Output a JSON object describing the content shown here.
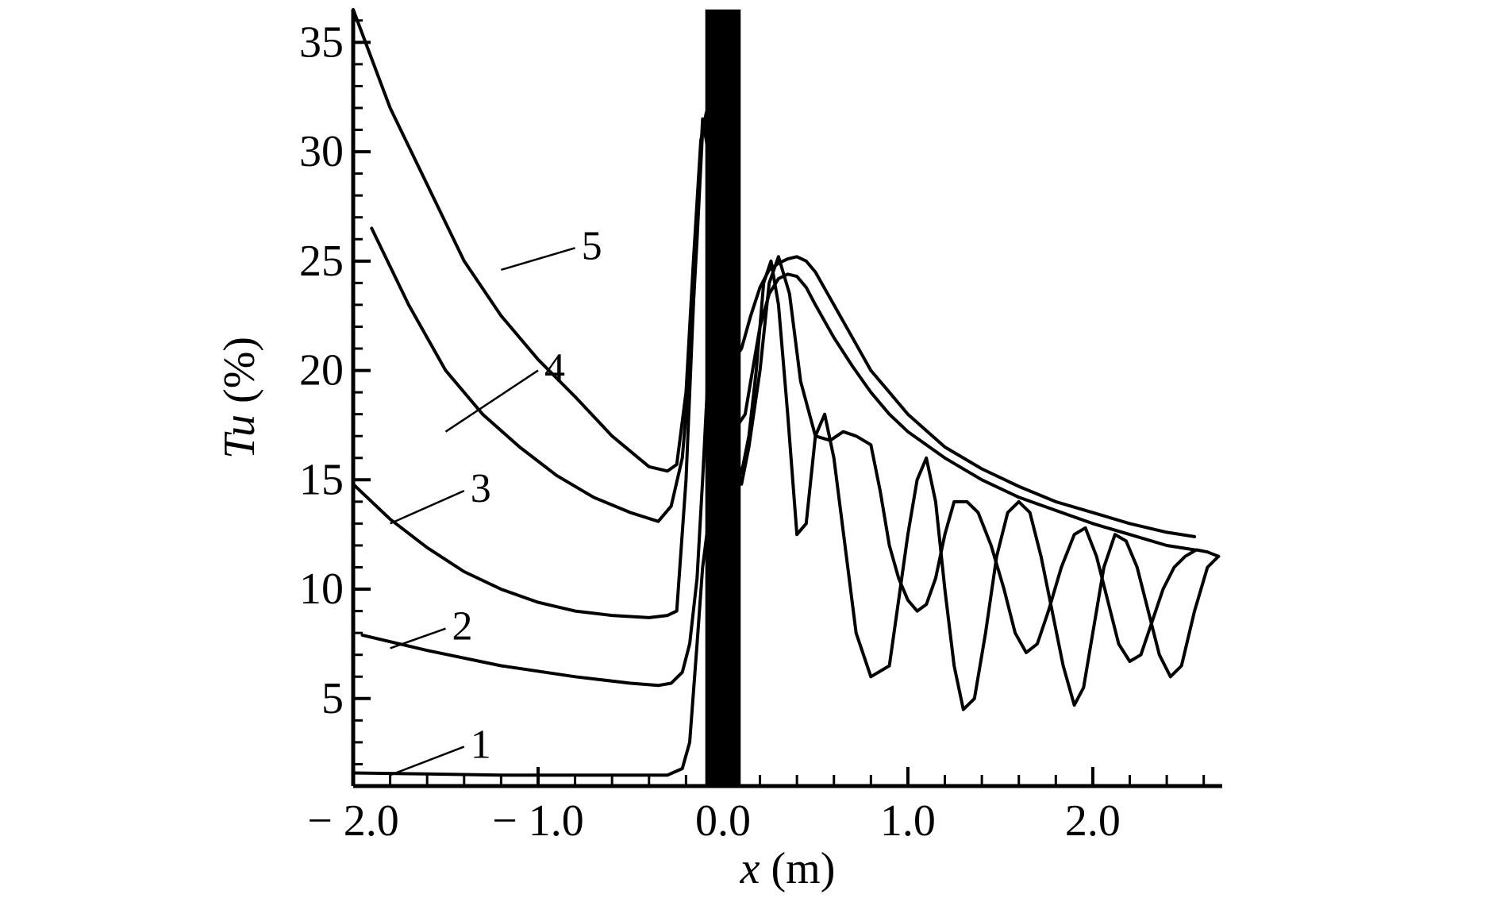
{
  "chart_data": {
    "type": "line",
    "xlabel": {
      "var": "x",
      "unit": " (m)"
    },
    "ylabel": {
      "var": "Tu",
      "unit": " (%)"
    },
    "xlim": [
      -2.0,
      2.7
    ],
    "ylim": [
      1.0,
      36.5
    ],
    "x_major_ticks": [
      -2.0,
      -1.0,
      0.0,
      1.0,
      2.0
    ],
    "x_tick_labels": [
      "− 2.0",
      "− 1.0",
      "0.0",
      "1.0",
      "2.0"
    ],
    "y_major_ticks": [
      5,
      10,
      15,
      20,
      25,
      30,
      35
    ],
    "y_tick_labels": [
      "5",
      "10",
      "15",
      "20",
      "25",
      "30",
      "35"
    ],
    "grid": false,
    "colors": {
      "line": "#000000",
      "background": "#ffffff",
      "band": "#000000"
    },
    "black_band": {
      "x": [
        -0.1,
        0.1
      ],
      "y": [
        1.0,
        36.5
      ]
    },
    "series": [
      {
        "label": "1",
        "label_pos": {
          "x": -1.34,
          "y": 2.9
        },
        "leader": [
          [
            -1.4,
            2.8
          ],
          [
            -1.8,
            1.5
          ]
        ],
        "x": [
          -2.0,
          -1.6,
          -1.2,
          -0.8,
          -0.5,
          -0.3,
          -0.22,
          -0.18,
          -0.14,
          -0.11,
          -0.08,
          -0.04,
          0.0
        ],
        "y": [
          1.6,
          1.55,
          1.5,
          1.5,
          1.5,
          1.5,
          1.8,
          3.0,
          7.5,
          11.0,
          13.0,
          13.5,
          13.5
        ]
      },
      {
        "label": "2",
        "label_pos": {
          "x": 0.65,
          "y": 7.2
        },
        "leader": [
          [
            -1.5,
            8.2
          ],
          [
            -1.8,
            7.3
          ]
        ],
        "x": [
          -1.95,
          -1.6,
          -1.2,
          -0.8,
          -0.5,
          -0.35,
          -0.28,
          -0.22,
          -0.18,
          -0.14,
          -0.11,
          -0.08,
          -0.04,
          0.0,
          0.05,
          0.1,
          0.14,
          0.2,
          0.25,
          0.3,
          0.36,
          0.42,
          0.5,
          0.58,
          0.65,
          0.72,
          0.8,
          0.85,
          0.9,
          0.95,
          1.0,
          1.05,
          1.1,
          1.15,
          1.2,
          1.25,
          1.32,
          1.38,
          1.45,
          1.52,
          1.58,
          1.64,
          1.7,
          1.76,
          1.83,
          1.9,
          1.96,
          2.02,
          2.08,
          2.14,
          2.2,
          2.26,
          2.32,
          2.38,
          2.44,
          2.5,
          2.56,
          2.62,
          2.68
        ],
        "y": [
          7.9,
          7.2,
          6.5,
          6.0,
          5.7,
          5.6,
          5.7,
          6.2,
          7.5,
          10.5,
          15.0,
          20.0,
          22.0,
          20.0,
          17.0,
          14.8,
          16.5,
          20.0,
          24.0,
          25.2,
          23.5,
          19.5,
          17.0,
          16.8,
          17.2,
          17.0,
          16.6,
          14.5,
          12.0,
          10.5,
          9.5,
          9.0,
          9.3,
          10.5,
          12.5,
          14.0,
          14.0,
          13.5,
          12.0,
          10.0,
          8.0,
          7.1,
          7.5,
          9.0,
          11.0,
          12.5,
          12.8,
          11.5,
          9.5,
          7.5,
          6.7,
          7.0,
          8.5,
          10.0,
          11.0,
          11.5,
          11.8,
          11.7,
          11.5
        ]
      },
      {
        "label": "3",
        "label_pos": {
          "x": 0.76,
          "y": 13.3
        },
        "leader": [
          [
            -1.4,
            14.5
          ],
          [
            -1.8,
            13.0
          ]
        ],
        "x": [
          -2.0,
          -1.8,
          -1.6,
          -1.4,
          -1.2,
          -1.0,
          -0.8,
          -0.6,
          -0.4,
          -0.3,
          -0.25,
          -0.2,
          -0.15,
          -0.11,
          -0.08,
          -0.04,
          0.0,
          0.05,
          0.1,
          0.14,
          0.18,
          0.22,
          0.26,
          0.3,
          0.35,
          0.4,
          0.45,
          0.5,
          0.55,
          0.6,
          0.66,
          0.72,
          0.8,
          0.9,
          0.95,
          1.0,
          1.05,
          1.1,
          1.15,
          1.2,
          1.25,
          1.3,
          1.36,
          1.42,
          1.48,
          1.54,
          1.6,
          1.66,
          1.72,
          1.78,
          1.84,
          1.9,
          1.95,
          2.0,
          2.06,
          2.12,
          2.18,
          2.24,
          2.3,
          2.36,
          2.42,
          2.48,
          2.55,
          2.62,
          2.68
        ],
        "y": [
          14.8,
          13.2,
          11.9,
          10.8,
          10.0,
          9.4,
          9.0,
          8.8,
          8.7,
          8.8,
          9.0,
          15.0,
          25.0,
          31.5,
          30.0,
          26.0,
          21.0,
          16.5,
          15.3,
          17.0,
          20.0,
          24.0,
          25.0,
          23.0,
          18.0,
          12.5,
          13.0,
          17.0,
          18.0,
          16.0,
          12.0,
          8.0,
          6.0,
          6.5,
          9.5,
          12.5,
          15.0,
          16.0,
          14.0,
          10.0,
          6.5,
          4.5,
          5.0,
          8.0,
          11.5,
          13.5,
          14.0,
          13.5,
          11.5,
          9.0,
          6.5,
          4.7,
          5.5,
          8.0,
          11.0,
          12.5,
          12.2,
          11.0,
          9.0,
          7.0,
          6.0,
          6.5,
          9.0,
          11.0,
          11.5
        ]
      },
      {
        "label": "4",
        "label_pos": {
          "x": 1.28,
          "y": 20.8
        },
        "leader": [
          [
            -1.0,
            20.0
          ],
          [
            -1.5,
            17.2
          ]
        ],
        "x": [
          -1.9,
          -1.7,
          -1.5,
          -1.3,
          -1.1,
          -0.9,
          -0.7,
          -0.5,
          -0.35,
          -0.28,
          -0.22,
          -0.18,
          -0.14,
          -0.11,
          -0.08,
          -0.04,
          0.0,
          0.04,
          0.08,
          0.12,
          0.16,
          0.2,
          0.25,
          0.3,
          0.35,
          0.4,
          0.45,
          0.5,
          0.6,
          0.7,
          0.8,
          0.9,
          1.0,
          1.2,
          1.4,
          1.6,
          1.8,
          2.0,
          2.2,
          2.4,
          2.55
        ],
        "y": [
          26.5,
          23.0,
          20.0,
          18.0,
          16.5,
          15.2,
          14.2,
          13.5,
          13.1,
          13.8,
          16.0,
          20.0,
          26.0,
          31.0,
          31.5,
          28.0,
          22.0,
          19.0,
          17.5,
          18.0,
          20.0,
          22.0,
          23.5,
          24.2,
          24.4,
          24.3,
          23.8,
          23.0,
          21.5,
          20.2,
          19.0,
          18.0,
          17.2,
          16.0,
          15.0,
          14.2,
          13.6,
          13.0,
          12.5,
          12.0,
          11.8
        ]
      },
      {
        "label": "5",
        "label_pos": {
          "x": 0.37,
          "y": 25.8
        },
        "leader": [
          [
            -0.8,
            25.6
          ],
          [
            -1.2,
            24.6
          ]
        ],
        "x": [
          -2.0,
          -1.8,
          -1.6,
          -1.4,
          -1.2,
          -1.0,
          -0.8,
          -0.6,
          -0.4,
          -0.3,
          -0.25,
          -0.2,
          -0.16,
          -0.12,
          -0.09,
          -0.06,
          -0.03,
          0.0,
          0.03,
          0.06,
          0.1,
          0.15,
          0.2,
          0.25,
          0.3,
          0.35,
          0.4,
          0.45,
          0.5,
          0.6,
          0.7,
          0.8,
          0.9,
          1.0,
          1.2,
          1.4,
          1.6,
          1.8,
          2.0,
          2.2,
          2.4,
          2.55
        ],
        "y": [
          36.5,
          32.0,
          28.5,
          25.0,
          22.5,
          20.5,
          18.8,
          17.0,
          15.6,
          15.4,
          15.7,
          19.0,
          25.0,
          30.5,
          31.8,
          31.0,
          28.0,
          24.0,
          21.5,
          20.5,
          21.0,
          22.5,
          23.8,
          24.6,
          24.9,
          25.1,
          25.2,
          25.0,
          24.5,
          23.0,
          21.5,
          20.0,
          19.0,
          18.0,
          16.5,
          15.5,
          14.7,
          14.0,
          13.5,
          13.0,
          12.6,
          12.4
        ]
      }
    ]
  }
}
